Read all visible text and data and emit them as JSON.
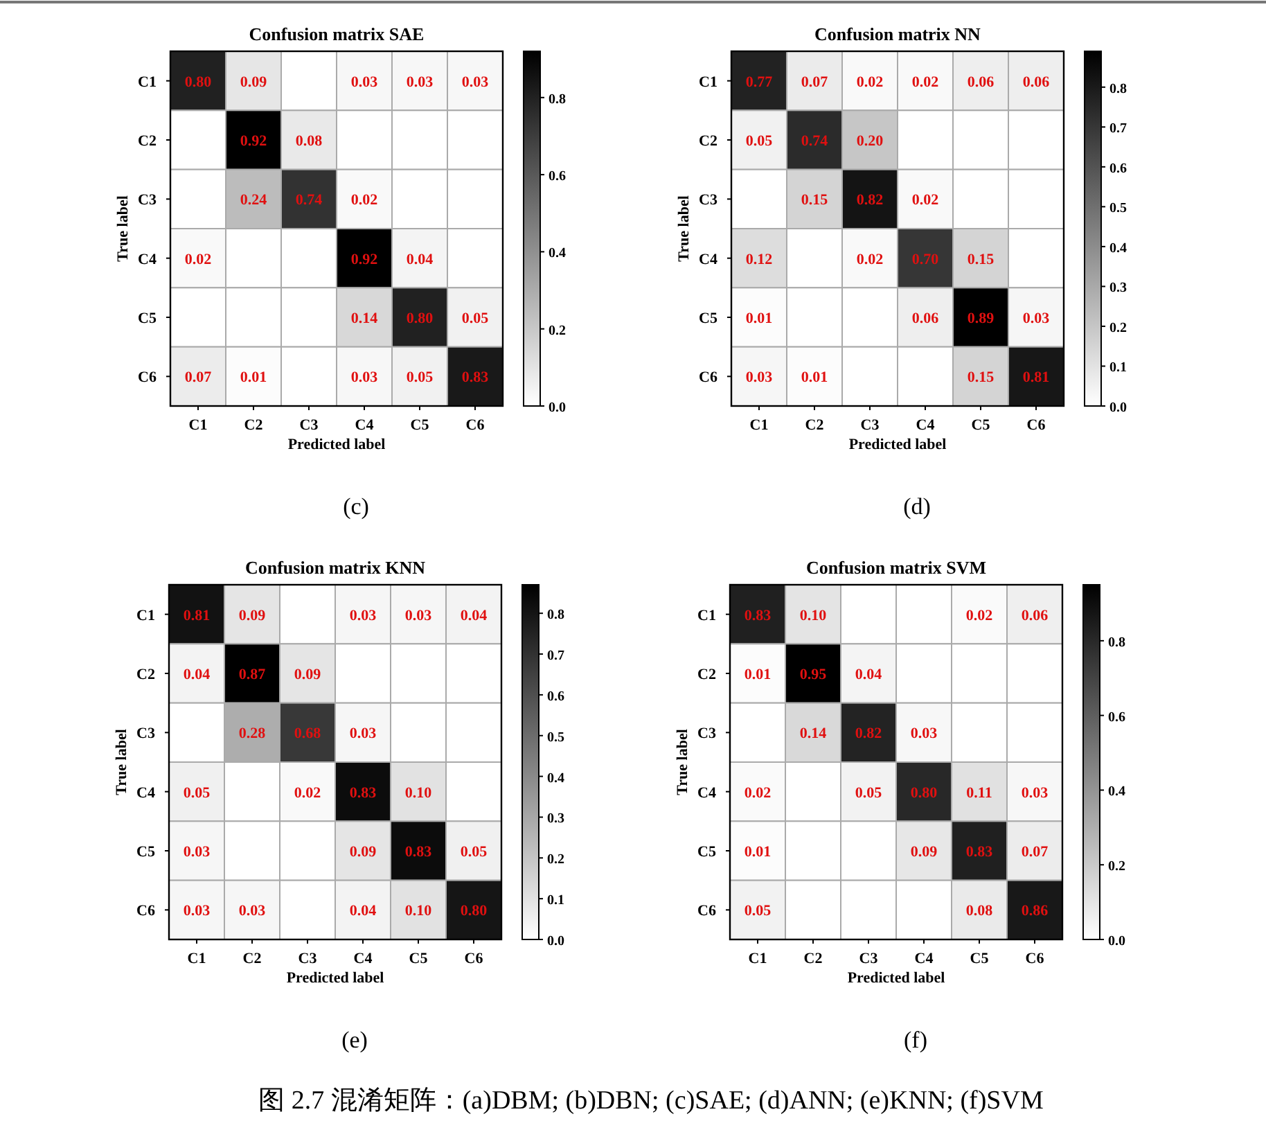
{
  "chart_data": [
    {
      "type": "heatmap",
      "title": "Confusion matrix SAE",
      "xlabel": "Predicted label",
      "ylabel": "True label",
      "annotations": [
        "(c)"
      ],
      "categories": [
        "C1",
        "C2",
        "C3",
        "C4",
        "C5",
        "C6"
      ],
      "y_categories": [
        "C1",
        "C2",
        "C3",
        "C4",
        "C5",
        "C6"
      ],
      "cells": [
        [
          0.8,
          0.09,
          null,
          0.03,
          0.03,
          0.03
        ],
        [
          null,
          0.92,
          0.08,
          null,
          null,
          null
        ],
        [
          null,
          0.24,
          0.74,
          0.02,
          null,
          null
        ],
        [
          0.02,
          null,
          null,
          0.92,
          0.04,
          null
        ],
        [
          null,
          null,
          null,
          0.14,
          0.8,
          0.05
        ],
        [
          0.07,
          0.01,
          null,
          0.03,
          0.05,
          0.83
        ]
      ],
      "cell_labels": [
        [
          "0.80",
          "0.09",
          null,
          "0.03",
          "0.03",
          "0.03"
        ],
        [
          null,
          "0.92",
          "0.08",
          null,
          null,
          null
        ],
        [
          null,
          "0.24",
          "0.74",
          "0.02",
          null,
          null
        ],
        [
          "0.02",
          null,
          null,
          "0.92",
          "0.04",
          null
        ],
        [
          null,
          null,
          null,
          "0.14",
          "0.80",
          "0.05"
        ],
        [
          "0.07",
          "0.01",
          null,
          "0.03",
          "0.05",
          "0.83"
        ]
      ],
      "clim": [
        0,
        0.92
      ],
      "cticks": [
        {
          "value": 0,
          "label": "0.0"
        },
        {
          "value": 0.2,
          "label": "0.2"
        },
        {
          "value": 0.4,
          "label": "0.4"
        },
        {
          "value": 0.6,
          "label": "0.6"
        },
        {
          "value": 0.8,
          "label": "0.8"
        }
      ]
    },
    {
      "type": "heatmap",
      "title": "Confusion matrix NN",
      "xlabel": "Predicted label",
      "ylabel": "True label",
      "annotations": [
        "(d)"
      ],
      "categories": [
        "C1",
        "C2",
        "C3",
        "C4",
        "C5",
        "C6"
      ],
      "y_categories": [
        "C1",
        "C2",
        "C3",
        "C4",
        "C5",
        "C6"
      ],
      "cells": [
        [
          0.77,
          0.07,
          0.02,
          0.02,
          0.06,
          0.06
        ],
        [
          0.05,
          0.74,
          0.2,
          null,
          null,
          null
        ],
        [
          null,
          0.15,
          0.82,
          0.02,
          null,
          null
        ],
        [
          0.12,
          null,
          0.02,
          0.7,
          0.15,
          null
        ],
        [
          0.01,
          null,
          null,
          0.06,
          0.89,
          0.03
        ],
        [
          0.03,
          0.01,
          null,
          null,
          0.15,
          0.81
        ]
      ],
      "cell_labels": [
        [
          "0.77",
          "0.07",
          "0.02",
          "0.02",
          "0.06",
          "0.06"
        ],
        [
          "0.05",
          "0.74",
          "0.20",
          null,
          null,
          null
        ],
        [
          null,
          "0.15",
          "0.82",
          "0.02",
          null,
          null
        ],
        [
          "0.12",
          null,
          "0.02",
          "0.70",
          "0.15",
          null
        ],
        [
          "0.01",
          null,
          null,
          "0.06",
          "0.89",
          "0.03"
        ],
        [
          "0.03",
          "0.01",
          null,
          null,
          "0.15",
          "0.81"
        ]
      ],
      "clim": [
        0,
        0.89
      ],
      "cticks": [
        {
          "value": 0,
          "label": "0.0"
        },
        {
          "value": 0.1,
          "label": "0.1"
        },
        {
          "value": 0.2,
          "label": "0.2"
        },
        {
          "value": 0.3,
          "label": "0.3"
        },
        {
          "value": 0.4,
          "label": "0.4"
        },
        {
          "value": 0.5,
          "label": "0.5"
        },
        {
          "value": 0.6,
          "label": "0.6"
        },
        {
          "value": 0.7,
          "label": "0.7"
        },
        {
          "value": 0.8,
          "label": "0.8"
        }
      ]
    },
    {
      "type": "heatmap",
      "title": "Confusion matrix KNN",
      "xlabel": "Predicted label",
      "ylabel": "True label",
      "annotations": [
        "(e)"
      ],
      "categories": [
        "C1",
        "C2",
        "C3",
        "C4",
        "C5",
        "C6"
      ],
      "y_categories": [
        "C1",
        "C2",
        "C3",
        "C4",
        "C5",
        "C6"
      ],
      "cells": [
        [
          0.81,
          0.09,
          null,
          0.03,
          0.03,
          0.04
        ],
        [
          0.04,
          0.87,
          0.09,
          null,
          null,
          null
        ],
        [
          null,
          0.28,
          0.68,
          0.03,
          null,
          null
        ],
        [
          0.05,
          null,
          0.02,
          0.83,
          0.1,
          null
        ],
        [
          0.03,
          null,
          null,
          0.09,
          0.83,
          0.05
        ],
        [
          0.03,
          0.03,
          null,
          0.04,
          0.1,
          0.8
        ]
      ],
      "cell_labels": [
        [
          "0.81",
          "0.09",
          null,
          "0.03",
          "0.03",
          "0.04"
        ],
        [
          "0.04",
          "0.87",
          "0.09",
          null,
          null,
          null
        ],
        [
          null,
          "0.28",
          "0.68",
          "0.03",
          null,
          null
        ],
        [
          "0.05",
          null,
          "0.02",
          "0.83",
          "0.10",
          null
        ],
        [
          "0.03",
          null,
          null,
          "0.09",
          "0.83",
          "0.05"
        ],
        [
          "0.03",
          "0.03",
          null,
          "0.04",
          "0.10",
          "0.80"
        ]
      ],
      "clim": [
        0,
        0.87
      ],
      "cticks": [
        {
          "value": 0,
          "label": "0.0"
        },
        {
          "value": 0.1,
          "label": "0.1"
        },
        {
          "value": 0.2,
          "label": "0.2"
        },
        {
          "value": 0.3,
          "label": "0.3"
        },
        {
          "value": 0.4,
          "label": "0.4"
        },
        {
          "value": 0.5,
          "label": "0.5"
        },
        {
          "value": 0.6,
          "label": "0.6"
        },
        {
          "value": 0.7,
          "label": "0.7"
        },
        {
          "value": 0.8,
          "label": "0.8"
        }
      ]
    },
    {
      "type": "heatmap",
      "title": "Confusion matrix SVM",
      "xlabel": "Predicted label",
      "ylabel": "True label",
      "annotations": [
        "(f)"
      ],
      "categories": [
        "C1",
        "C2",
        "C3",
        "C4",
        "C5",
        "C6"
      ],
      "y_categories": [
        "C1",
        "C2",
        "C3",
        "C4",
        "C5",
        "C6"
      ],
      "cells": [
        [
          0.83,
          0.1,
          null,
          null,
          0.02,
          0.06
        ],
        [
          0.01,
          0.95,
          0.04,
          null,
          null,
          null
        ],
        [
          null,
          0.14,
          0.82,
          0.03,
          null,
          null
        ],
        [
          0.02,
          null,
          0.05,
          0.8,
          0.11,
          0.03
        ],
        [
          0.01,
          null,
          null,
          0.09,
          0.83,
          0.07
        ],
        [
          0.05,
          null,
          null,
          null,
          0.08,
          0.86
        ]
      ],
      "cell_labels": [
        [
          "0.83",
          "0.10",
          null,
          null,
          "0.02",
          "0.06"
        ],
        [
          "0.01",
          "0.95",
          "0.04",
          null,
          null,
          null
        ],
        [
          null,
          "0.14",
          "0.82",
          "0.03",
          null,
          null
        ],
        [
          "0.02",
          null,
          "0.05",
          "0.80",
          "0.11",
          "0.03"
        ],
        [
          "0.01",
          null,
          null,
          "0.09",
          "0.83",
          "0.07"
        ],
        [
          "0.05",
          null,
          null,
          null,
          "0.08",
          "0.86"
        ]
      ],
      "clim": [
        0,
        0.95
      ],
      "cticks": [
        {
          "value": 0,
          "label": "0.0"
        },
        {
          "value": 0.2,
          "label": "0.2"
        },
        {
          "value": 0.4,
          "label": "0.4"
        },
        {
          "value": 0.6,
          "label": "0.6"
        },
        {
          "value": 0.8,
          "label": "0.8"
        }
      ]
    },
    {
      "type": "other",
      "annotations": [
        "图 2.7  混淆矩阵：(a)DBM; (b)DBN; (c)SAE; (d)ANN; (e)KNN; (f)SVM"
      ]
    }
  ]
}
